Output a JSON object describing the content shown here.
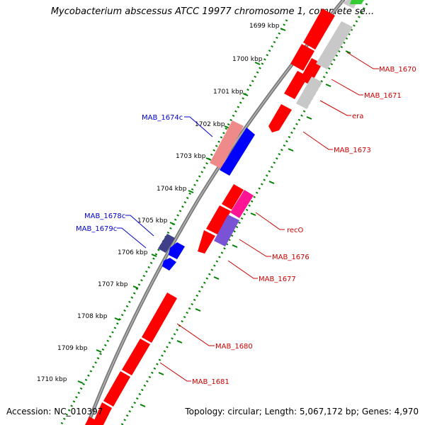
{
  "title": "Mycobacterium abscessus ATCC 19977 chromosome 1, complete se...",
  "footer": {
    "accession": "Accession: NC_010397",
    "summary": "Topology: circular; Length: 5,067,172 bp; Genes: 4,970"
  },
  "colors": {
    "gene_forward": "#ff0000",
    "gene_reverse": "#0000ff",
    "gene_other": "#c8c8c8",
    "gene_recO": "#ff1493",
    "gene_MAB_1676": "#7a52d6",
    "gene_MAB_1678c": "#3f3f8a",
    "gene_MAB_1674c_pale": "#ef8a8a",
    "gene_green": "#33cc33",
    "backbone": "#808080",
    "ruler": "#008000",
    "label_forward": "#cc0000",
    "label_reverse": "#0000cc"
  },
  "ruler_ticks": [
    {
      "label": "1699 kbp"
    },
    {
      "label": "1700 kbp"
    },
    {
      "label": "1701 kbp"
    },
    {
      "label": "1702 kbp"
    },
    {
      "label": "1703 kbp"
    },
    {
      "label": "1704 kbp"
    },
    {
      "label": "1705 kbp"
    },
    {
      "label": "1706 kbp"
    },
    {
      "label": "1707 kbp"
    },
    {
      "label": "1708 kbp"
    },
    {
      "label": "1709 kbp"
    },
    {
      "label": "1710 kbp"
    }
  ],
  "gene_labels": {
    "right": [
      "MAB_1670",
      "MAB_1671",
      "era",
      "MAB_1673",
      "recO",
      "MAB_1676",
      "MAB_1677",
      "MAB_1680",
      "MAB_1681"
    ],
    "left": [
      "MAB_1674c",
      "MAB_1678c",
      "MAB_1679c"
    ]
  }
}
